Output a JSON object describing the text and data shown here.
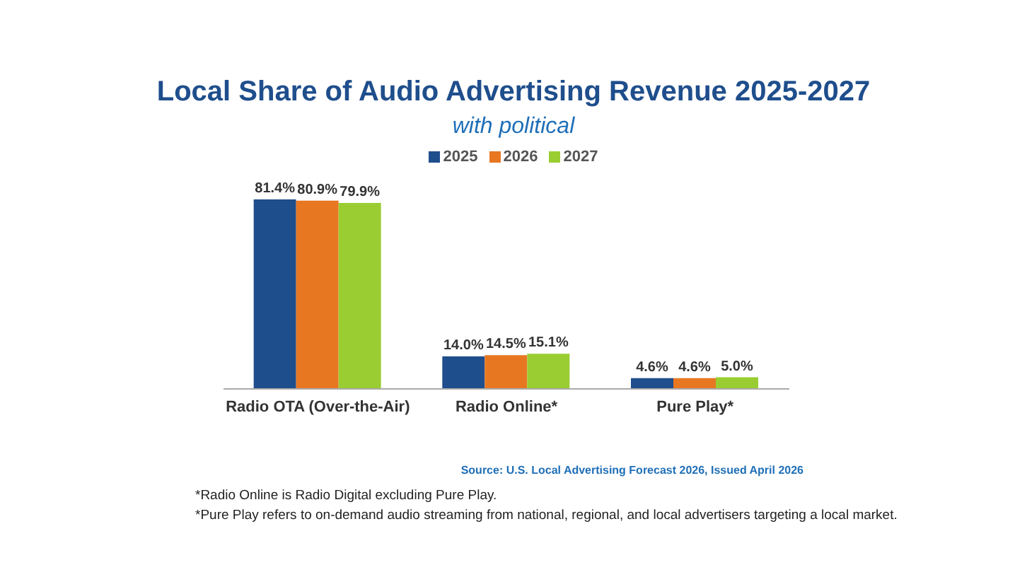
{
  "chart_data": {
    "type": "bar",
    "title": "Local Share of Audio Advertising Revenue 2025-2027",
    "subtitle": "with political",
    "categories": [
      "Radio OTA (Over-the-Air)",
      "Radio Online*",
      "Pure Play*"
    ],
    "series": [
      {
        "name": "2025",
        "color": "#1f4e8c",
        "values": [
          81.4,
          14.0,
          4.6
        ],
        "value_labels": [
          "81.4%",
          "14.0%",
          "4.6%"
        ]
      },
      {
        "name": "2026",
        "color": "#e87722",
        "values": [
          80.9,
          14.5,
          4.6
        ],
        "value_labels": [
          "80.9%",
          "14.5%",
          "4.6%"
        ]
      },
      {
        "name": "2027",
        "color": "#9acd32",
        "values": [
          79.9,
          15.1,
          5.0
        ],
        "value_labels": [
          "79.9%",
          "15.1%",
          "5.0%"
        ]
      }
    ],
    "legend": "top",
    "grid": false,
    "annotations": [
      "Source: U.S. Local Advertising Forecast 2026, Issued April 2026",
      "*Radio Online is Radio Digital excluding Pure Play.",
      "*Pure Play refers to on-demand audio streaming from national, regional, and local advertisers targeting a local market."
    ]
  }
}
